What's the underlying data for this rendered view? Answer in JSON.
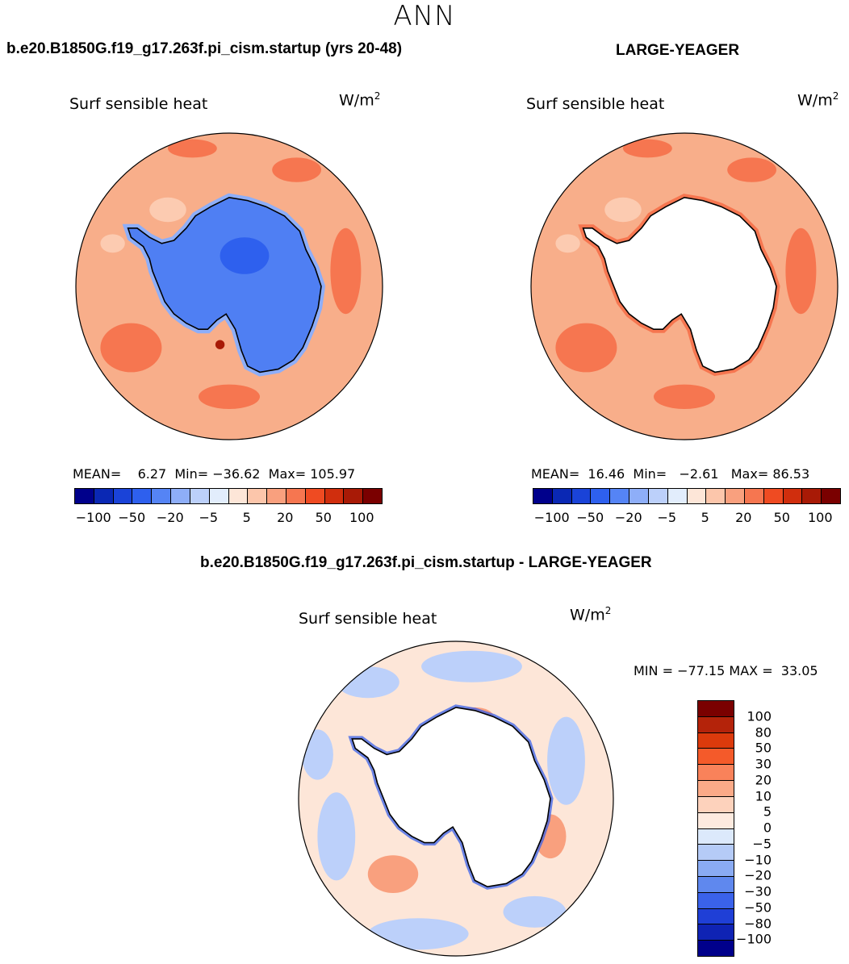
{
  "season": "ANN",
  "panels": [
    {
      "case": "b.e20.B1850G.f19_g17.263f.pi_cism.startup (yrs 20-48)",
      "variable": "Surf sensible heat",
      "units_base": "W/m",
      "units_exp": "2",
      "mean_label": "MEAN=",
      "mean": "6.27",
      "min_label": "Min=",
      "min": "−36.62",
      "max_label": "Max=",
      "max": "105.97"
    },
    {
      "case": "LARGE-YEAGER",
      "variable": "Surf sensible heat",
      "units_base": "W/m",
      "units_exp": "2",
      "mean_label": "MEAN=",
      "mean": "16.46",
      "min_label": "Min=",
      "min": "−2.61",
      "max_label": "Max=",
      "max": "86.53"
    }
  ],
  "diff": {
    "title": "b.e20.B1850G.f19_g17.263f.pi_cism.startup - LARGE-YEAGER",
    "variable": "Surf sensible heat",
    "units_base": "W/m",
    "units_exp": "2",
    "min_label": "MIN =",
    "min": "−77.15",
    "max_label": "MAX =",
    "max": "33.05"
  },
  "colorbar_abs": {
    "colors": [
      "#00008b",
      "#0a28b4",
      "#1a43d8",
      "#2e60ee",
      "#5584f5",
      "#8eaef8",
      "#bcd0fa",
      "#e2edfc",
      "#fde6d8",
      "#fcc6ab",
      "#f9a07e",
      "#f67650",
      "#ef4b22",
      "#d02e0d",
      "#a81a06",
      "#7a0000"
    ],
    "ticks": [
      "−100",
      "−50",
      "−20",
      "−5",
      "5",
      "20",
      "50",
      "100"
    ]
  },
  "colorbar_diff": {
    "colors": [
      "#7a0000",
      "#b4230a",
      "#dc3a0c",
      "#f45a2a",
      "#f9825a",
      "#fbaa88",
      "#fdd2bc",
      "#fdeadf",
      "#dce9fb",
      "#b5cbf7",
      "#8aabf3",
      "#5f88ee",
      "#3a62ea",
      "#1f3fd6",
      "#0f23b4",
      "#00008b"
    ],
    "ticks": [
      "100",
      "80",
      "50",
      "30",
      "20",
      "10",
      "5",
      "0",
      "−5",
      "−10",
      "−20",
      "−30",
      "−50",
      "−80",
      "−100"
    ]
  },
  "map_colors": {
    "ocean_base": "#f8ae8a",
    "ocean_strong": "#f67650",
    "ocean_weak": "#fccbb1",
    "ice_base": "#4f7ff3",
    "ice_light": "#8eaef8",
    "ice_dark": "#2e60ee",
    "diff_base": "#fde6d8",
    "diff_blue": "#bcd0fa",
    "diff_blue_strong": "#3a62ea",
    "diff_red": "#f9a07e"
  }
}
